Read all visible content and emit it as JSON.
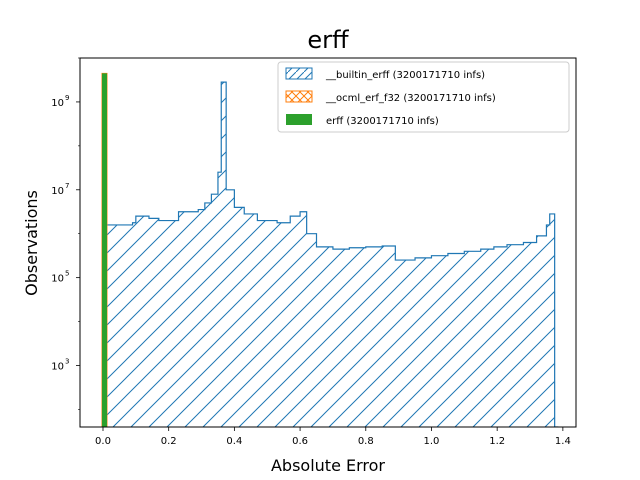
{
  "chart_data": {
    "type": "histogram",
    "title": "erff",
    "xlabel": "Absolute Error",
    "ylabel": "Observations",
    "xlim": [
      -0.07,
      1.44
    ],
    "ylim_log10": [
      1.6,
      10.0
    ],
    "y_scale": "log",
    "x_ticks": [
      0.0,
      0.2,
      0.4,
      0.6,
      0.8,
      1.0,
      1.2,
      1.4
    ],
    "x_tick_labels": [
      "0.0",
      "0.2",
      "0.4",
      "0.6",
      "0.8",
      "1.0",
      "1.2",
      "1.4"
    ],
    "y_ticks_log10": [
      3,
      5,
      7,
      9
    ],
    "y_tick_labels": [
      {
        "base": "10",
        "exp": "3"
      },
      {
        "base": "10",
        "exp": "5"
      },
      {
        "base": "10",
        "exp": "7"
      },
      {
        "base": "10",
        "exp": "9"
      }
    ],
    "grid": false,
    "legend_position": "upper right",
    "series": [
      {
        "name": "__builtin_erff (3200171710 infs)",
        "color": "#1f77b4",
        "histtype": "step",
        "hatch": "//",
        "steps": [
          [
            0.01,
            6.2
          ],
          [
            0.09,
            6.25
          ],
          [
            0.1,
            6.4
          ],
          [
            0.14,
            6.35
          ],
          [
            0.17,
            6.3
          ],
          [
            0.23,
            6.5
          ],
          [
            0.29,
            6.55
          ],
          [
            0.31,
            6.7
          ],
          [
            0.33,
            6.9
          ],
          [
            0.35,
            7.4
          ],
          [
            0.36,
            9.45
          ],
          [
            0.375,
            7.0
          ],
          [
            0.4,
            6.6
          ],
          [
            0.43,
            6.45
          ],
          [
            0.47,
            6.3
          ],
          [
            0.53,
            6.25
          ],
          [
            0.57,
            6.4
          ],
          [
            0.6,
            6.5
          ],
          [
            0.62,
            6.0
          ],
          [
            0.65,
            5.7
          ],
          [
            0.7,
            5.65
          ],
          [
            0.75,
            5.68
          ],
          [
            0.8,
            5.7
          ],
          [
            0.85,
            5.72
          ],
          [
            0.89,
            5.4
          ],
          [
            0.95,
            5.45
          ],
          [
            1.0,
            5.5
          ],
          [
            1.05,
            5.55
          ],
          [
            1.1,
            5.6
          ],
          [
            1.15,
            5.65
          ],
          [
            1.19,
            5.7
          ],
          [
            1.23,
            5.75
          ],
          [
            1.28,
            5.8
          ],
          [
            1.32,
            5.95
          ],
          [
            1.35,
            6.2
          ],
          [
            1.36,
            6.45
          ],
          [
            1.375,
            1.6
          ]
        ]
      },
      {
        "name": "__ocml_erf_f32 (3200171710 infs)",
        "color": "#ff7f0e",
        "histtype": "step",
        "hatch": "x",
        "x": 0.0,
        "value_log10": 9.65
      },
      {
        "name": "erff (3200171710 infs)",
        "color": "#2ca02c",
        "histtype": "bar",
        "x": 0.0,
        "value_log10": 9.65
      }
    ]
  }
}
